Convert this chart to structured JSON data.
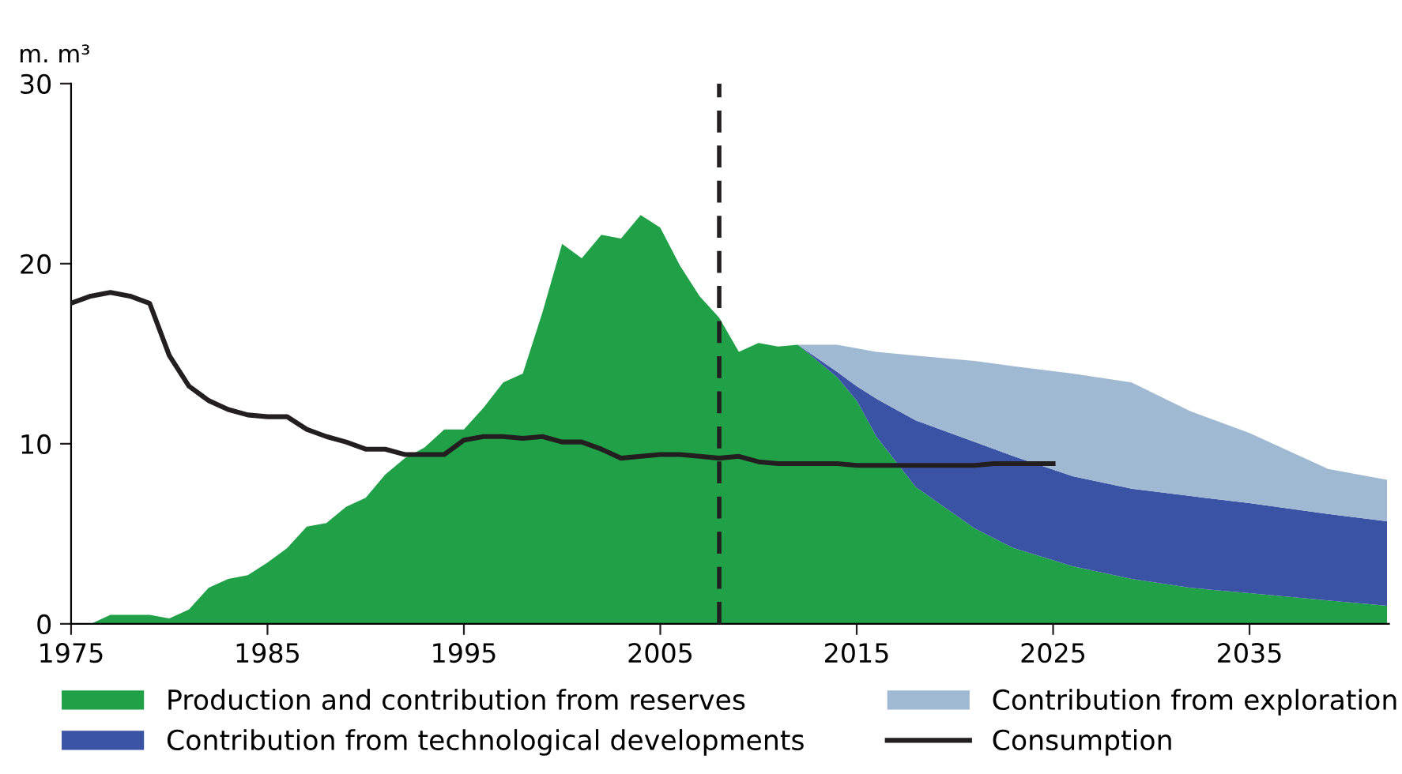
{
  "chart_data": {
    "type": "area",
    "ylabel": "m. m³",
    "stacked": true,
    "xlim": [
      1975,
      2042.1
    ],
    "xticks": [
      1975,
      1985,
      1995,
      2005,
      2015,
      2025,
      2035
    ],
    "ylim": [
      0,
      30
    ],
    "yticks": [
      0,
      10,
      20,
      30
    ],
    "grid": false,
    "legend": "bottom",
    "x": [
      1975,
      1976,
      1977,
      1978,
      1979,
      1980,
      1981,
      1982,
      1983,
      1984,
      1985,
      1986,
      1987,
      1988,
      1989,
      1990,
      1991,
      1992,
      1993,
      1994,
      1995,
      1996,
      1997,
      1998,
      1999,
      2000,
      2001,
      2002,
      2003,
      2004,
      2005,
      2006,
      2007,
      2008,
      2009,
      2010,
      2011,
      2012,
      2014,
      2015,
      2016,
      2018,
      2021,
      2023,
      2026,
      2029,
      2032,
      2035,
      2039,
      2042
    ],
    "series": [
      {
        "name": "Production and contribution from reserves",
        "type": "area",
        "color": "#21a147",
        "values": [
          0,
          0,
          0.5,
          0.5,
          0.5,
          0.3,
          0.8,
          2.0,
          2.5,
          2.7,
          3.4,
          4.2,
          5.4,
          5.6,
          6.5,
          7.0,
          8.3,
          9.2,
          9.8,
          10.8,
          10.8,
          12.0,
          13.4,
          13.9,
          17.3,
          21.1,
          20.3,
          21.6,
          21.4,
          22.7,
          22.0,
          19.9,
          18.2,
          17.0,
          15.1,
          15.6,
          15.4,
          15.5,
          13.7,
          12.4,
          10.4,
          7.6,
          5.3,
          4.2,
          3.2,
          2.5,
          2.0,
          1.7,
          1.3,
          1.0
        ]
      },
      {
        "name": "Contribution from technological developments",
        "type": "area",
        "color": "#3a53a4",
        "values": [
          null,
          null,
          null,
          null,
          null,
          null,
          null,
          null,
          null,
          null,
          null,
          null,
          null,
          null,
          null,
          null,
          null,
          null,
          null,
          null,
          null,
          null,
          null,
          null,
          null,
          null,
          null,
          null,
          null,
          null,
          null,
          null,
          null,
          null,
          null,
          null,
          null,
          0,
          0.3,
          0.8,
          2.1,
          3.7,
          4.8,
          5.1,
          5.0,
          5.0,
          5.1,
          5.0,
          4.8,
          4.7
        ]
      },
      {
        "name": "Contribution from exploration",
        "type": "area",
        "color": "#a0b9d3",
        "values": [
          null,
          null,
          null,
          null,
          null,
          null,
          null,
          null,
          null,
          null,
          null,
          null,
          null,
          null,
          null,
          null,
          null,
          null,
          null,
          null,
          null,
          null,
          null,
          null,
          null,
          null,
          null,
          null,
          null,
          null,
          null,
          null,
          null,
          null,
          null,
          null,
          null,
          0,
          1.5,
          2.1,
          2.6,
          3.6,
          4.5,
          5.0,
          5.7,
          5.9,
          4.7,
          3.9,
          2.5,
          2.3
        ]
      },
      {
        "name": "Consumption",
        "type": "line",
        "color": "#231f20",
        "x": [
          1975,
          1976,
          1977,
          1978,
          1979,
          1980,
          1981,
          1982,
          1983,
          1984,
          1985,
          1986,
          1987,
          1988,
          1989,
          1990,
          1991,
          1992,
          1993,
          1994,
          1995,
          1996,
          1997,
          1998,
          1999,
          2000,
          2001,
          2002,
          2003,
          2004,
          2005,
          2006,
          2007,
          2008,
          2009,
          2010,
          2011,
          2012,
          2013,
          2014,
          2015,
          2016,
          2017,
          2018,
          2019,
          2020,
          2021,
          2022,
          2023,
          2024,
          2025
        ],
        "values": [
          17.8,
          18.2,
          18.4,
          18.2,
          17.8,
          14.9,
          13.2,
          12.4,
          11.9,
          11.6,
          11.5,
          11.5,
          10.8,
          10.4,
          10.1,
          9.7,
          9.7,
          9.4,
          9.4,
          9.4,
          10.2,
          10.4,
          10.4,
          10.3,
          10.4,
          10.1,
          10.1,
          9.7,
          9.2,
          9.3,
          9.4,
          9.4,
          9.3,
          9.2,
          9.3,
          9.0,
          8.9,
          8.9,
          8.9,
          8.9,
          8.8,
          8.8,
          8.8,
          8.8,
          8.8,
          8.8,
          8.8,
          8.9,
          8.9,
          8.9,
          8.9
        ]
      }
    ],
    "ref_lines": [
      {
        "axis": "x",
        "value": 2008,
        "color": "#231f20",
        "line_style": "dashed"
      }
    ]
  }
}
